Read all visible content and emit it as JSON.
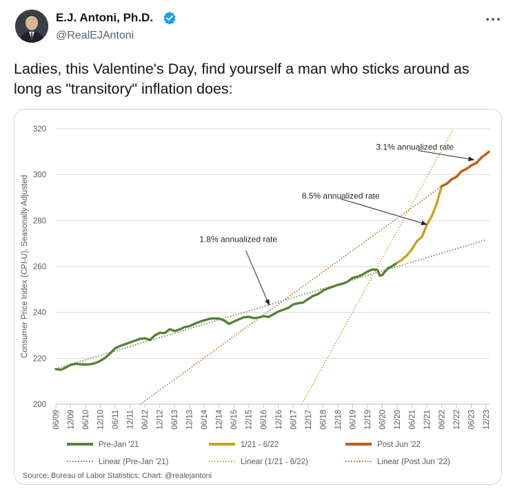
{
  "tweet": {
    "author_name": "E.J. Antoni, Ph.D.",
    "handle": "@RealEJAntoni",
    "verified": true,
    "text": "Ladies, this Valentine's Day, find yourself a man who sticks around as long as \"transitory\" inflation does:"
  },
  "icons": {
    "verified": "verified-badge-icon",
    "more": "more-options-icon"
  },
  "colors": {
    "pre": "#548235",
    "mid": "#c9a21b",
    "post": "#c55a11",
    "trend_pre": "#548235",
    "trend_mid": "#c9a21b",
    "trend_post": "#c55a11",
    "grid": "#d9d9d9",
    "text": "#595959"
  },
  "chart_data": {
    "type": "line",
    "ylabel": "Consumer Price Index (CPI-U), Seasonally Adjusted",
    "ylim": [
      200,
      320
    ],
    "yticks": [
      200,
      220,
      240,
      260,
      280,
      300,
      320
    ],
    "x_range": [
      2009.46,
      2023.96
    ],
    "xticks": [
      {
        "label": "06/09",
        "x": 2009.46
      },
      {
        "label": "12/09",
        "x": 2009.96
      },
      {
        "label": "06/10",
        "x": 2010.46
      },
      {
        "label": "12/10",
        "x": 2010.96
      },
      {
        "label": "06/11",
        "x": 2011.46
      },
      {
        "label": "12/11",
        "x": 2011.96
      },
      {
        "label": "06/12",
        "x": 2012.46
      },
      {
        "label": "12/12",
        "x": 2012.96
      },
      {
        "label": "06/13",
        "x": 2013.46
      },
      {
        "label": "12/13",
        "x": 2013.96
      },
      {
        "label": "06/14",
        "x": 2014.46
      },
      {
        "label": "12/14",
        "x": 2014.96
      },
      {
        "label": "06/15",
        "x": 2015.46
      },
      {
        "label": "12/15",
        "x": 2015.96
      },
      {
        "label": "06/16",
        "x": 2016.46
      },
      {
        "label": "12/16",
        "x": 2016.96
      },
      {
        "label": "06/17",
        "x": 2017.46
      },
      {
        "label": "12/17",
        "x": 2017.96
      },
      {
        "label": "06/18",
        "x": 2018.46
      },
      {
        "label": "12/18",
        "x": 2018.96
      },
      {
        "label": "06/19",
        "x": 2019.46
      },
      {
        "label": "12/19",
        "x": 2019.96
      },
      {
        "label": "06/20",
        "x": 2020.46
      },
      {
        "label": "12/20",
        "x": 2020.96
      },
      {
        "label": "06/21",
        "x": 2021.46
      },
      {
        "label": "12/21",
        "x": 2021.96
      },
      {
        "label": "06/22",
        "x": 2022.46
      },
      {
        "label": "12/22",
        "x": 2022.96
      },
      {
        "label": "06/23",
        "x": 2023.46
      },
      {
        "label": "12/23",
        "x": 2023.96
      }
    ],
    "series": [
      {
        "name": "Pre-Jan '21",
        "color_key": "pre",
        "points": [
          [
            2009.46,
            215.3
          ],
          [
            2009.63,
            215.0
          ],
          [
            2009.8,
            216.0
          ],
          [
            2009.96,
            217.2
          ],
          [
            2010.13,
            217.6
          ],
          [
            2010.3,
            217.4
          ],
          [
            2010.46,
            217.3
          ],
          [
            2010.63,
            217.4
          ],
          [
            2010.8,
            218.0
          ],
          [
            2010.96,
            218.9
          ],
          [
            2011.13,
            220.3
          ],
          [
            2011.3,
            222.3
          ],
          [
            2011.46,
            224.4
          ],
          [
            2011.63,
            225.4
          ],
          [
            2011.8,
            226.2
          ],
          [
            2011.96,
            226.9
          ],
          [
            2012.13,
            227.7
          ],
          [
            2012.3,
            228.5
          ],
          [
            2012.46,
            228.7
          ],
          [
            2012.63,
            228.0
          ],
          [
            2012.8,
            230.0
          ],
          [
            2012.96,
            231.1
          ],
          [
            2013.13,
            231.0
          ],
          [
            2013.3,
            232.7
          ],
          [
            2013.46,
            231.9
          ],
          [
            2013.63,
            232.6
          ],
          [
            2013.8,
            233.6
          ],
          [
            2013.96,
            234.0
          ],
          [
            2014.13,
            235.0
          ],
          [
            2014.3,
            235.9
          ],
          [
            2014.46,
            236.5
          ],
          [
            2014.63,
            237.2
          ],
          [
            2014.8,
            237.4
          ],
          [
            2014.96,
            237.3
          ],
          [
            2015.13,
            236.5
          ],
          [
            2015.3,
            235.0
          ],
          [
            2015.46,
            236.0
          ],
          [
            2015.63,
            237.0
          ],
          [
            2015.8,
            237.9
          ],
          [
            2015.96,
            238.1
          ],
          [
            2016.13,
            237.5
          ],
          [
            2016.3,
            237.8
          ],
          [
            2016.46,
            238.4
          ],
          [
            2016.63,
            238.0
          ],
          [
            2016.8,
            239.2
          ],
          [
            2016.96,
            240.4
          ],
          [
            2017.13,
            241.2
          ],
          [
            2017.3,
            242.0
          ],
          [
            2017.46,
            243.5
          ],
          [
            2017.63,
            244.0
          ],
          [
            2017.8,
            244.3
          ],
          [
            2017.96,
            245.8
          ],
          [
            2018.13,
            247.2
          ],
          [
            2018.3,
            248.0
          ],
          [
            2018.46,
            249.5
          ],
          [
            2018.63,
            250.5
          ],
          [
            2018.8,
            251.2
          ],
          [
            2018.96,
            252.0
          ],
          [
            2019.13,
            252.5
          ],
          [
            2019.3,
            253.5
          ],
          [
            2019.46,
            255.0
          ],
          [
            2019.63,
            255.6
          ],
          [
            2019.8,
            256.5
          ],
          [
            2019.96,
            257.8
          ],
          [
            2020.13,
            258.7
          ],
          [
            2020.3,
            258.5
          ],
          [
            2020.38,
            256.0
          ],
          [
            2020.46,
            256.3
          ],
          [
            2020.63,
            259.0
          ],
          [
            2020.8,
            260.2
          ],
          [
            2020.96,
            261.6
          ]
        ]
      },
      {
        "name": "1/21 - 6/22",
        "color_key": "mid",
        "points": [
          [
            2020.96,
            261.6
          ],
          [
            2021.13,
            263.0
          ],
          [
            2021.3,
            265.0
          ],
          [
            2021.46,
            267.5
          ],
          [
            2021.63,
            271.0
          ],
          [
            2021.8,
            273.0
          ],
          [
            2021.96,
            278.0
          ],
          [
            2022.13,
            282.0
          ],
          [
            2022.3,
            287.5
          ],
          [
            2022.46,
            295.0
          ]
        ]
      },
      {
        "name": "Post Jun '22",
        "color_key": "post",
        "points": [
          [
            2022.46,
            295.0
          ],
          [
            2022.63,
            296.0
          ],
          [
            2022.8,
            298.0
          ],
          [
            2022.96,
            299.0
          ],
          [
            2023.13,
            301.5
          ],
          [
            2023.3,
            302.5
          ],
          [
            2023.46,
            304.0
          ],
          [
            2023.63,
            305.0
          ],
          [
            2023.8,
            307.5
          ],
          [
            2023.96,
            309.0
          ],
          [
            2024.05,
            310.0
          ]
        ]
      }
    ],
    "trendlines": [
      {
        "name": "Linear (Pre-Jan '21)",
        "color_key": "trend_pre",
        "from": [
          2009.46,
          215.5
        ],
        "to": [
          2023.96,
          271.6
        ]
      },
      {
        "name": "Linear (1/21 - 6/22)",
        "color_key": "trend_mid",
        "from": [
          2017.75,
          200.0
        ],
        "to": [
          2022.86,
          320.0
        ]
      },
      {
        "name": "Linear (Post Jun '22)",
        "color_key": "trend_post",
        "from": [
          2012.3,
          200.0
        ],
        "to": [
          2023.96,
          309.0
        ]
      }
    ],
    "annotations": [
      {
        "text": "3.1% annualized rate",
        "text_at": [
          2020.25,
          310.8
        ],
        "arrow_from": [
          2021.67,
          310.5
        ],
        "arrow_to": [
          2023.55,
          306.5
        ]
      },
      {
        "text": "8.5% annualized rate",
        "text_at": [
          2017.75,
          289.6
        ],
        "arrow_from": [
          2019.05,
          289.5
        ],
        "arrow_to": [
          2021.96,
          278.3
        ]
      },
      {
        "text": "1.8% annualized rate",
        "text_at": [
          2014.3,
          270.6
        ],
        "arrow_from": [
          2015.86,
          267.0
        ],
        "arrow_to": [
          2016.65,
          243.2
        ]
      }
    ],
    "legend": {
      "position": "bottom",
      "items": [
        {
          "label": "Pre-Jan '21",
          "style": "solid",
          "color_key": "pre"
        },
        {
          "label": "1/21 - 6/22",
          "style": "solid",
          "color_key": "mid"
        },
        {
          "label": "Post Jun '22",
          "style": "solid",
          "color_key": "post"
        },
        {
          "label": "Linear (Pre-Jan '21)",
          "style": "dotted",
          "color_key": "trend_pre"
        },
        {
          "label": "Linear (1/21 - 6/22)",
          "style": "dotted",
          "color_key": "trend_mid"
        },
        {
          "label": "Linear (Post Jun '22)",
          "style": "dotted",
          "color_key": "trend_post"
        }
      ]
    },
    "source": "Source: Bureau of Labor Statistics; Chart: @realejantoni"
  }
}
